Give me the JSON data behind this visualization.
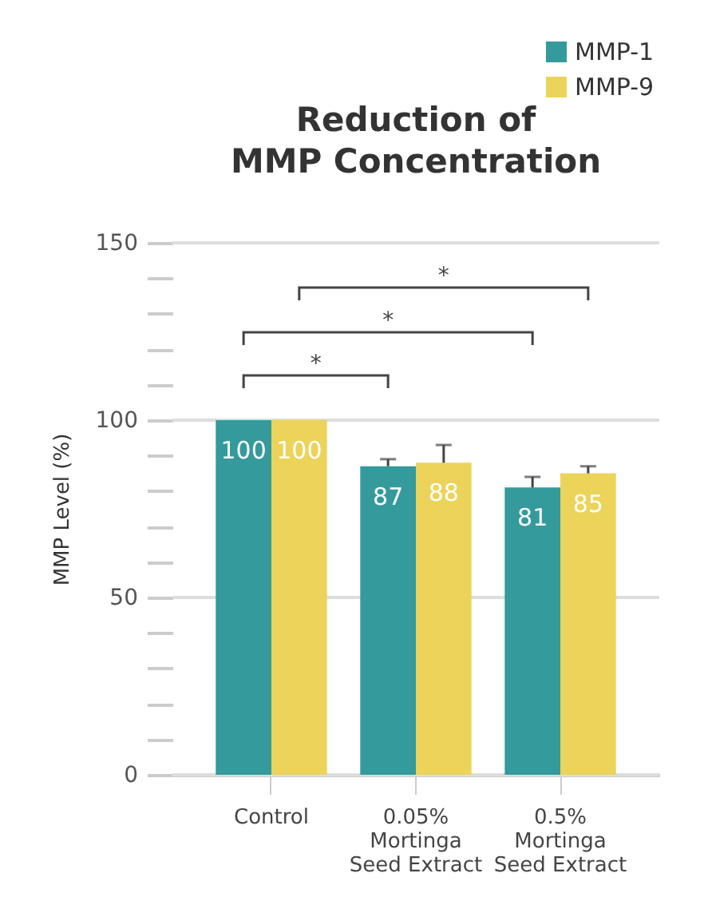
{
  "chart_data": {
    "type": "bar",
    "title": "Reduction of MMP Concentration",
    "ylabel": "MMP Level (%)",
    "categories": [
      "Control",
      "0.05% Mortinga Seed Extract",
      "0.5% Mortinga Seed Extract"
    ],
    "series": [
      {
        "name": "MMP-1",
        "color": "#349a9c",
        "values": [
          100,
          87,
          81
        ],
        "errors": [
          null,
          2,
          3
        ]
      },
      {
        "name": "MMP-9",
        "color": "#ecd35a",
        "values": [
          100,
          88,
          85
        ],
        "errors": [
          null,
          5,
          2
        ]
      }
    ],
    "ylim": [
      0,
      150
    ],
    "yticks": [
      0,
      {
        "value": 10,
        "label": null
      },
      {
        "value": 20,
        "label": null
      },
      {
        "value": 30,
        "label": null
      },
      {
        "value": 40,
        "label": null
      },
      50,
      {
        "value": 60,
        "label": null
      },
      {
        "value": 70,
        "label": null
      },
      {
        "value": 80,
        "label": null
      },
      {
        "value": 90,
        "label": null
      },
      100,
      {
        "value": 110,
        "label": null
      },
      {
        "value": 120,
        "label": null
      },
      {
        "value": 130,
        "label": null
      },
      {
        "value": 140,
        "label": null
      },
      150
    ],
    "grid": "y",
    "legend": "top right",
    "data_labels": true,
    "annotations": [
      "*",
      "*",
      "*"
    ]
  }
}
